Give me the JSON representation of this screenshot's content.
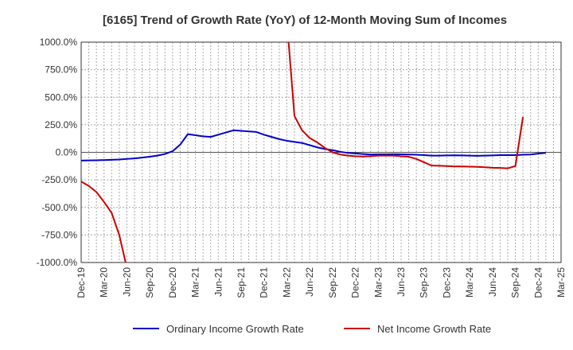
{
  "chart_data": {
    "type": "line",
    "title": "[6165]  Trend of Growth Rate (YoY) of 12-Month Moving Sum of Incomes",
    "xlabel": "",
    "ylabel": "",
    "ylim": [
      -1000,
      1000
    ],
    "y_ticks": [
      1000,
      750,
      500,
      250,
      0,
      -250,
      -500,
      -750,
      -1000
    ],
    "y_tick_labels": [
      "1000.0%",
      "750.0%",
      "500.0%",
      "250.0%",
      "0.0%",
      "-250.0%",
      "-500.0%",
      "-750.0%",
      "-1000.0%"
    ],
    "x_tick_labels": [
      "Dec-19",
      "Mar-20",
      "Jun-20",
      "Sep-20",
      "Dec-20",
      "Mar-21",
      "Jun-21",
      "Sep-21",
      "Dec-21",
      "Mar-22",
      "Jun-22",
      "Sep-22",
      "Dec-22",
      "Mar-23",
      "Jun-23",
      "Sep-23",
      "Dec-23",
      "Mar-24",
      "Jun-24",
      "Sep-24",
      "Dec-24",
      "Mar-25"
    ],
    "x": [
      "Dec-19",
      "Jan-20",
      "Feb-20",
      "Mar-20",
      "Apr-20",
      "May-20",
      "Jun-20",
      "Jul-20",
      "Aug-20",
      "Sep-20",
      "Oct-20",
      "Nov-20",
      "Dec-20",
      "Jan-21",
      "Feb-21",
      "Mar-21",
      "Apr-21",
      "May-21",
      "Jun-21",
      "Jul-21",
      "Aug-21",
      "Sep-21",
      "Oct-21",
      "Nov-21",
      "Dec-21",
      "Jan-22",
      "Feb-22",
      "Mar-22",
      "Apr-22",
      "May-22",
      "Jun-22",
      "Jul-22",
      "Aug-22",
      "Sep-22",
      "Oct-22",
      "Nov-22",
      "Dec-22",
      "Jan-23",
      "Feb-23",
      "Mar-23",
      "Apr-23",
      "May-23",
      "Jun-23",
      "Jul-23",
      "Aug-23",
      "Sep-23",
      "Oct-23",
      "Nov-23",
      "Dec-23",
      "Jan-24",
      "Feb-24",
      "Mar-24",
      "Apr-24",
      "May-24",
      "Jun-24",
      "Jul-24",
      "Aug-24",
      "Sep-24",
      "Oct-24",
      "Nov-24",
      "Dec-24",
      "Jan-25",
      "Feb-25",
      "Mar-25"
    ],
    "grid": true,
    "legend_position": "bottom",
    "series": [
      {
        "name": "Ordinary Income Growth Rate",
        "color": "#0000cc",
        "values": [
          -75,
          -73,
          -72,
          -70,
          -68,
          -65,
          -60,
          -55,
          -48,
          -40,
          -30,
          -15,
          10,
          70,
          165,
          155,
          145,
          140,
          160,
          180,
          200,
          195,
          190,
          185,
          160,
          140,
          120,
          105,
          95,
          85,
          65,
          45,
          30,
          20,
          5,
          -5,
          -10,
          -15,
          -20,
          -18,
          -18,
          -17,
          -18,
          -20,
          -22,
          -25,
          -30,
          -30,
          -28,
          -27,
          -28,
          -30,
          -32,
          -30,
          -28,
          -25,
          -25,
          -25,
          -22,
          -20,
          -12,
          -5,
          null,
          null
        ]
      },
      {
        "name": "Net Income Growth Rate",
        "color": "#cc0000",
        "values": [
          -265,
          -305,
          -360,
          -450,
          -550,
          -750,
          -1050,
          null,
          null,
          null,
          null,
          null,
          null,
          null,
          null,
          null,
          null,
          null,
          null,
          null,
          null,
          null,
          null,
          null,
          null,
          null,
          null,
          1200,
          330,
          200,
          130,
          90,
          40,
          0,
          -20,
          -30,
          -35,
          -38,
          -35,
          -30,
          -30,
          -30,
          -35,
          -40,
          -60,
          -90,
          -120,
          -122,
          -125,
          -128,
          -128,
          -130,
          -132,
          -135,
          -140,
          -142,
          -145,
          -125,
          320,
          null,
          null,
          null,
          null,
          null
        ]
      }
    ]
  }
}
